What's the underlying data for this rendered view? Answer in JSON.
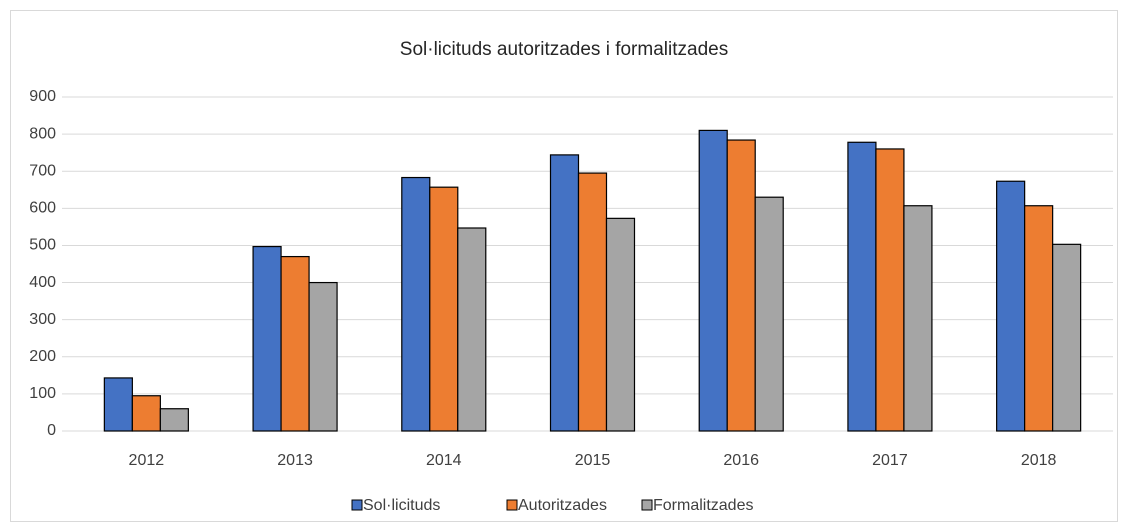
{
  "chart_data": {
    "type": "bar",
    "title": "Sol·licituds autoritzades i formalitzades",
    "categories": [
      "2012",
      "2013",
      "2014",
      "2015",
      "2016",
      "2017",
      "2018"
    ],
    "series": [
      {
        "name": "Sol·licituds",
        "color": "#4472c4",
        "values": [
          143,
          497,
          683,
          744,
          810,
          778,
          673
        ]
      },
      {
        "name": "Autoritzades",
        "color": "#ed7d31",
        "values": [
          95,
          470,
          657,
          695,
          784,
          760,
          607
        ]
      },
      {
        "name": "Formalitzades",
        "color": "#a5a5a5",
        "values": [
          60,
          400,
          547,
          573,
          630,
          607,
          503
        ]
      }
    ],
    "ylim": [
      0,
      900
    ],
    "yticks": [
      0,
      100,
      200,
      300,
      400,
      500,
      600,
      700,
      800,
      900
    ],
    "grid": true,
    "legend": "bottom"
  }
}
